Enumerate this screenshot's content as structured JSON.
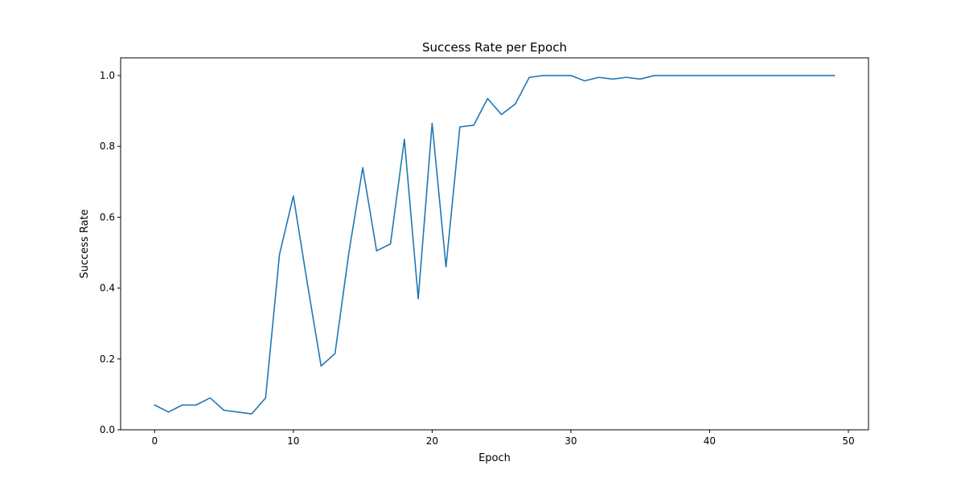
{
  "chart_data": {
    "type": "line",
    "title": "Success Rate per Epoch",
    "xlabel": "Epoch",
    "ylabel": "Success Rate",
    "xlim": [
      -2.45,
      51.45
    ],
    "ylim": [
      0.0,
      1.05
    ],
    "x_ticks": [
      "0",
      "10",
      "20",
      "30",
      "40",
      "50"
    ],
    "x_tick_values": [
      0,
      10,
      20,
      30,
      40,
      50
    ],
    "y_ticks": [
      "0.0",
      "0.2",
      "0.4",
      "0.6",
      "0.8",
      "1.0"
    ],
    "y_tick_values": [
      0.0,
      0.2,
      0.4,
      0.6,
      0.8,
      1.0
    ],
    "grid": false,
    "series": [
      {
        "color": "#1f77b4",
        "x": [
          0,
          1,
          2,
          3,
          4,
          5,
          6,
          7,
          8,
          9,
          10,
          11,
          12,
          13,
          14,
          15,
          16,
          17,
          18,
          19,
          20,
          21,
          22,
          23,
          24,
          25,
          26,
          27,
          28,
          29,
          30,
          31,
          32,
          33,
          34,
          35,
          36,
          37,
          38,
          39,
          40,
          41,
          42,
          43,
          44,
          45,
          46,
          47,
          48,
          49
        ],
        "values": [
          0.07,
          0.05,
          0.07,
          0.07,
          0.09,
          0.055,
          0.05,
          0.045,
          0.09,
          0.495,
          0.66,
          0.415,
          0.18,
          0.215,
          0.5,
          0.74,
          0.505,
          0.525,
          0.82,
          0.37,
          0.865,
          0.46,
          0.855,
          0.86,
          0.935,
          0.89,
          0.92,
          0.995,
          1.0,
          1.0,
          1.0,
          0.985,
          0.995,
          0.99,
          0.995,
          0.99,
          1.0,
          1.0,
          1.0,
          1.0,
          1.0,
          1.0,
          1.0,
          1.0,
          1.0,
          1.0,
          1.0,
          1.0,
          1.0,
          1.0
        ]
      }
    ]
  }
}
